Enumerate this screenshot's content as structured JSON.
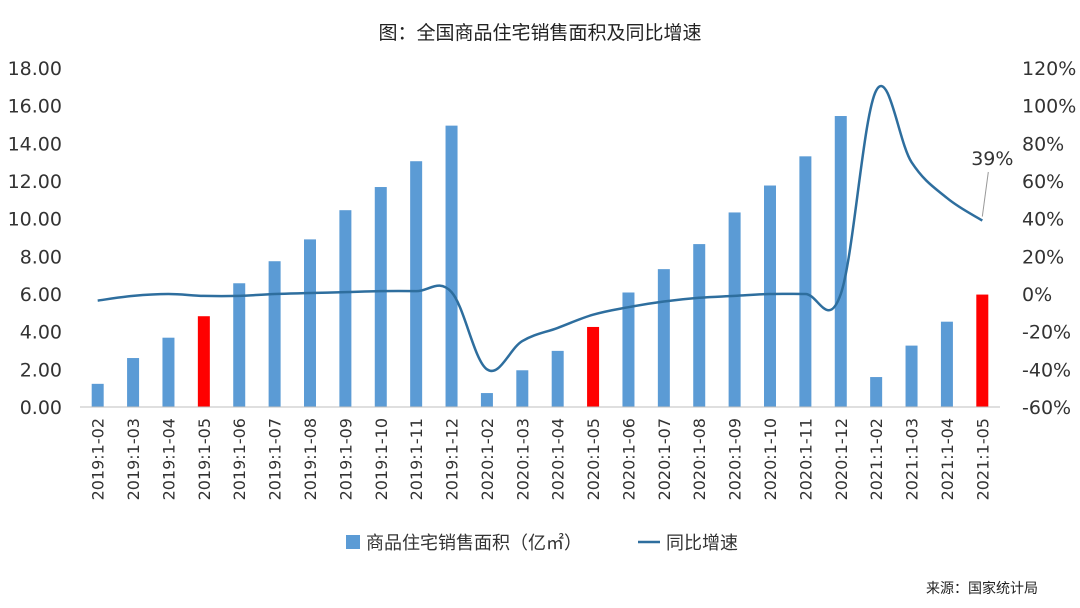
{
  "chart_data": {
    "type": "bar+line",
    "title": "图：全国商品住宅销售面积及同比增速",
    "categories": [
      "2019:1-02",
      "2019:1-03",
      "2019:1-04",
      "2019:1-05",
      "2019:1-06",
      "2019:1-07",
      "2019:1-08",
      "2019:1-09",
      "2019:1-10",
      "2019:1-11",
      "2019:1-12",
      "2020:1-02",
      "2020:1-03",
      "2020:1-04",
      "2020:1-05",
      "2020:1-06",
      "2020:1-07",
      "2020:1-08",
      "2020:1-09",
      "2020:1-10",
      "2020:1-11",
      "2020:1-12",
      "2021:1-02",
      "2021:1-03",
      "2021:1-04",
      "2021:1-05"
    ],
    "series": [
      {
        "name": "商品住宅销售面积（亿㎡）",
        "type": "bar",
        "axis": "left",
        "color": "#5B9BD5",
        "highlight_color": "#FF0000",
        "highlight_indices": [
          3,
          14,
          25
        ],
        "values": [
          1.23,
          2.6,
          3.68,
          4.82,
          6.57,
          7.74,
          8.9,
          10.45,
          11.68,
          13.05,
          14.94,
          0.74,
          1.95,
          2.98,
          4.25,
          6.08,
          7.32,
          8.65,
          10.33,
          11.76,
          13.31,
          15.45,
          1.59,
          3.26,
          4.53,
          5.97
        ]
      },
      {
        "name": "同比增速",
        "type": "line",
        "axis": "right",
        "color": "#2E6E9E",
        "values": [
          -3.5,
          -1,
          0,
          -1,
          -1,
          0,
          0.5,
          1,
          1.5,
          1.5,
          1,
          -40,
          -25,
          -18,
          -11,
          -7,
          -4,
          -2,
          -1,
          0,
          0,
          0,
          108,
          70,
          51,
          39
        ]
      }
    ],
    "y_left": {
      "range": [
        0,
        18
      ],
      "ticks": [
        "0.00",
        "2.00",
        "4.00",
        "6.00",
        "8.00",
        "10.00",
        "12.00",
        "14.00",
        "16.00",
        "18.00"
      ]
    },
    "y_right": {
      "range": [
        -60,
        120
      ],
      "ticks": [
        "-60%",
        "-40%",
        "-20%",
        "0%",
        "20%",
        "40%",
        "60%",
        "80%",
        "100%",
        "120%"
      ]
    },
    "annotation": {
      "text": "39%",
      "series_index": 1,
      "point_index": 25
    },
    "legend": {
      "position": "bottom"
    },
    "grid": false
  },
  "source": "来源：国家统计局"
}
